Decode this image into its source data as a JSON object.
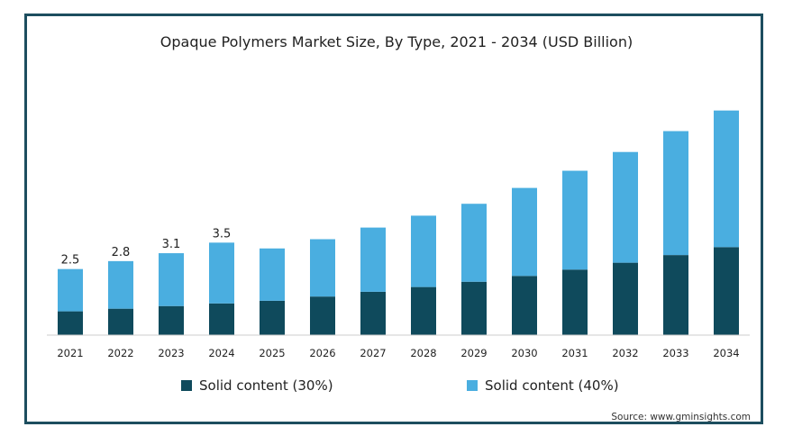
{
  "chart_data": {
    "type": "bar",
    "stacked": true,
    "title": "Opaque Polymers Market Size, By Type, 2021 - 2034 (USD Billion)",
    "categories": [
      "2021",
      "2022",
      "2023",
      "2024",
      "2025",
      "2026",
      "2027",
      "2028",
      "2029",
      "2030",
      "2031",
      "2032",
      "2033",
      "2034"
    ],
    "series": [
      {
        "name": "Solid content (30%)",
        "color": "#0f4a5c",
        "values": [
          0.9,
          1.0,
          1.1,
          1.2,
          1.3,
          1.46,
          1.64,
          1.82,
          2.02,
          2.24,
          2.48,
          2.74,
          3.03,
          3.33
        ]
      },
      {
        "name": "Solid content (40%)",
        "color": "#4aaee0",
        "values": [
          1.6,
          1.8,
          2.0,
          2.3,
          1.98,
          2.17,
          2.43,
          2.7,
          2.95,
          3.33,
          3.74,
          4.19,
          4.69,
          5.17
        ]
      }
    ],
    "totals": [
      2.5,
      2.8,
      3.1,
      3.5
    ],
    "data_labels": [
      "2.5",
      "2.8",
      "3.1",
      "3.5"
    ],
    "ylim": [
      0,
      9
    ],
    "xlabel": "",
    "ylabel": "",
    "grid": false,
    "legend_position": "bottom"
  },
  "source_text": "Source: www.gminsights.com"
}
